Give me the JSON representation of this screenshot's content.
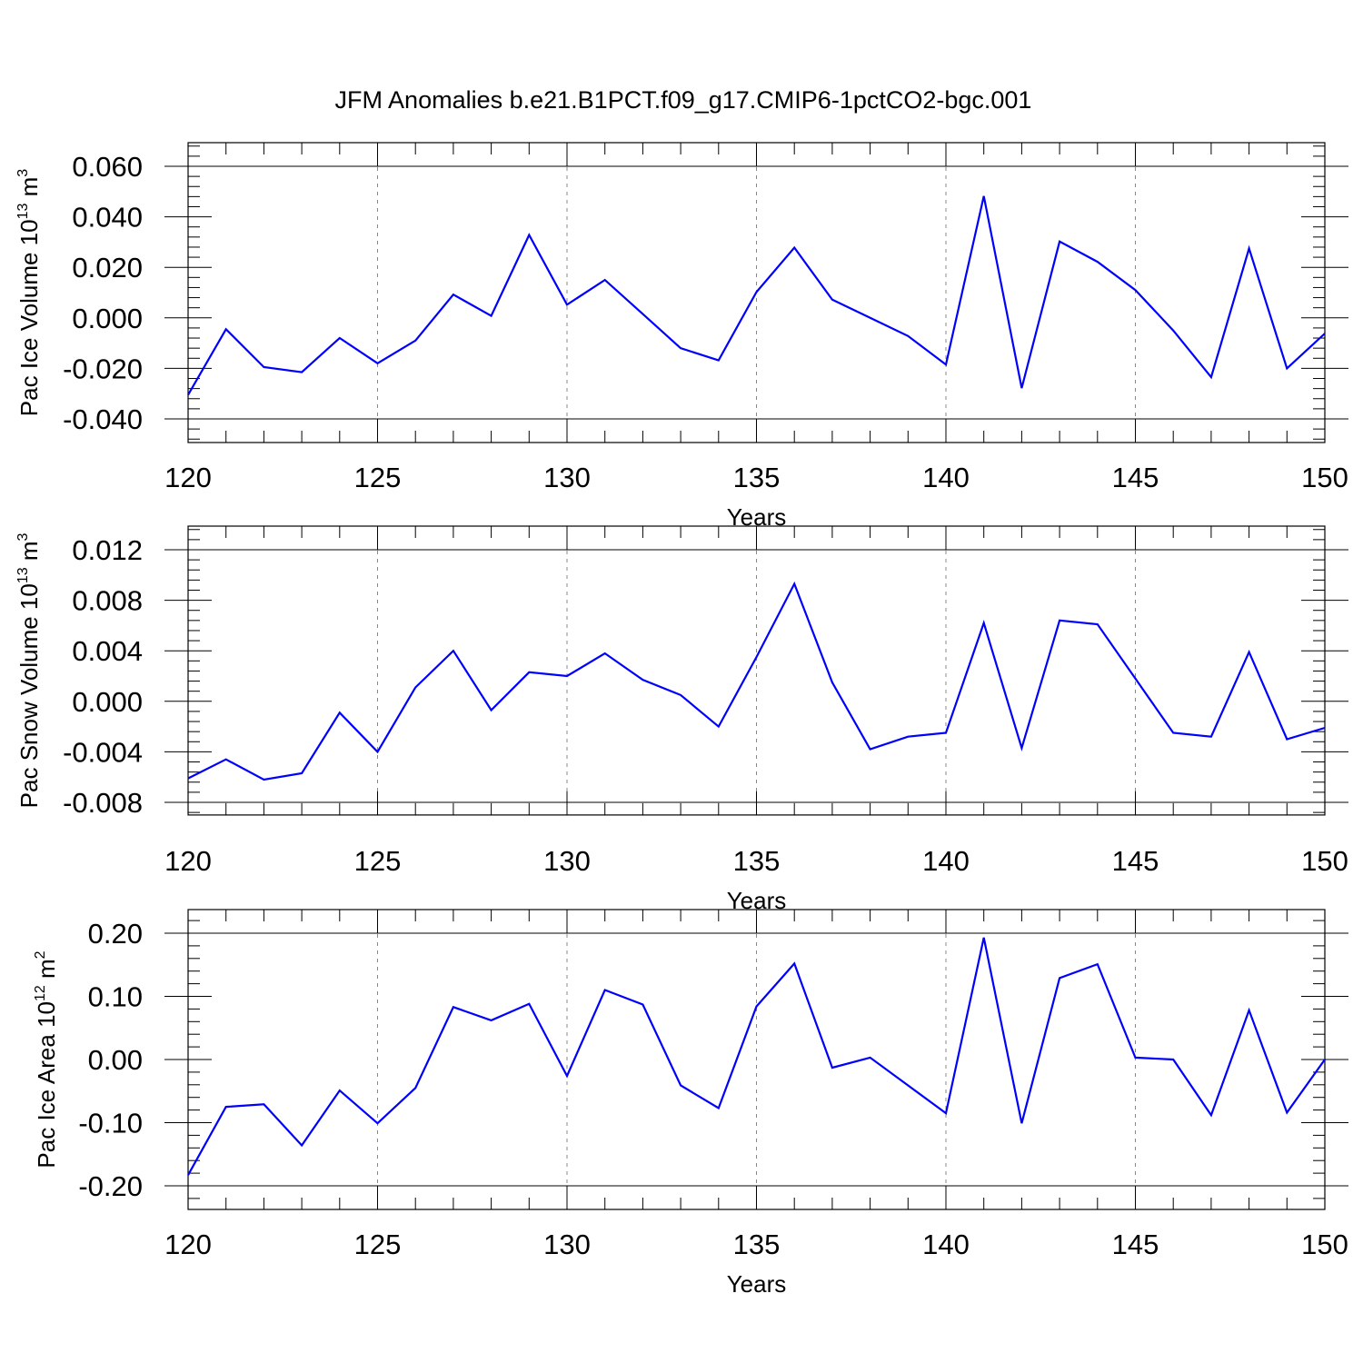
{
  "title": "JFM Anomalies b.e21.B1PCT.f09_g17.CMIP6-1pctCO2-bgc.001",
  "colors": {
    "line": "#0000ff",
    "axis": "#000000",
    "grid": "#888888"
  },
  "chart_data": [
    {
      "type": "line",
      "ylabel": {
        "main": "Pac Ice Volume 10",
        "sup": "13",
        "unit": " m",
        "unit_sup": "3"
      },
      "xlabel": "Years",
      "xlim": [
        120,
        150
      ],
      "ylim": [
        -0.04,
        0.06
      ],
      "yticks": [
        -0.04,
        -0.02,
        0.0,
        0.02,
        0.04,
        0.06
      ],
      "ytick_labels": [
        "-0.040",
        "-0.020",
        "0.000",
        "0.020",
        "0.040",
        "0.060"
      ],
      "xticks": [
        120,
        125,
        130,
        135,
        140,
        145,
        150
      ],
      "xtick_labels": [
        "120",
        "125",
        "130",
        "135",
        "140",
        "145",
        "150"
      ],
      "grid": "vertical dashed at major x ticks",
      "x": [
        120,
        121,
        122,
        123,
        124,
        125,
        126,
        127,
        128,
        129,
        130,
        131,
        132,
        133,
        134,
        135,
        136,
        137,
        138,
        139,
        140,
        141,
        142,
        143,
        144,
        145,
        146,
        147,
        148,
        149,
        150
      ],
      "series": [
        {
          "values": [
            -0.0305,
            -0.0045,
            -0.0195,
            -0.0215,
            -0.008,
            -0.018,
            -0.009,
            0.0092,
            0.0008,
            0.0328,
            0.0052,
            0.015,
            0.0015,
            -0.012,
            -0.0168,
            0.0102,
            0.0278,
            0.0072,
            0.0,
            -0.0072,
            -0.0185,
            0.0482,
            -0.0278,
            0.0302,
            0.0222,
            0.011,
            -0.005,
            -0.0235,
            0.0275,
            -0.02,
            -0.0062
          ]
        }
      ]
    },
    {
      "type": "line",
      "ylabel": {
        "main": "Pac Snow Volume 10",
        "sup": "13",
        "unit": " m",
        "unit_sup": "3"
      },
      "xlabel": "Years",
      "xlim": [
        120,
        150
      ],
      "ylim": [
        -0.009,
        0.0125
      ],
      "yticks": [
        -0.008,
        -0.004,
        0.0,
        0.004,
        0.008,
        0.012
      ],
      "ytick_labels": [
        "-0.008",
        "-0.004",
        "0.000",
        "0.004",
        "0.008",
        "0.012"
      ],
      "xticks": [
        120,
        125,
        130,
        135,
        140,
        145,
        150
      ],
      "xtick_labels": [
        "120",
        "125",
        "130",
        "135",
        "140",
        "145",
        "150"
      ],
      "grid": "vertical dashed at major x ticks",
      "x": [
        120,
        121,
        122,
        123,
        124,
        125,
        126,
        127,
        128,
        129,
        130,
        131,
        132,
        133,
        134,
        135,
        136,
        137,
        138,
        139,
        140,
        141,
        142,
        143,
        144,
        145,
        146,
        147,
        148,
        149,
        150
      ],
      "series": [
        {
          "values": [
            -0.0061,
            -0.0046,
            -0.0062,
            -0.0057,
            -0.0009,
            -0.004,
            0.0011,
            0.004,
            -0.0007,
            0.0023,
            0.002,
            0.0038,
            0.0017,
            0.0005,
            -0.002,
            0.0035,
            0.0093,
            0.0015,
            -0.0038,
            -0.0028,
            -0.0025,
            0.0062,
            -0.0037,
            0.0064,
            0.0061,
            0.0018,
            -0.0025,
            -0.0028,
            0.0039,
            -0.003,
            -0.0021
          ]
        }
      ]
    },
    {
      "type": "line",
      "ylabel": {
        "main": "Pac Ice Area 10",
        "sup": "12",
        "unit": " m",
        "unit_sup": "2"
      },
      "xlabel": "Years",
      "xlim": [
        120,
        150
      ],
      "ylim": [
        -0.2,
        0.2
      ],
      "yticks": [
        -0.2,
        -0.1,
        0.0,
        0.1,
        0.2
      ],
      "ytick_labels": [
        "-0.20",
        "-0.10",
        "0.00",
        "0.10",
        "0.20"
      ],
      "xticks": [
        120,
        125,
        130,
        135,
        140,
        145,
        150
      ],
      "xtick_labels": [
        "120",
        "125",
        "130",
        "135",
        "140",
        "145",
        "150"
      ],
      "grid": "vertical dashed at major x ticks",
      "x": [
        120,
        121,
        122,
        123,
        124,
        125,
        126,
        127,
        128,
        129,
        130,
        131,
        132,
        133,
        134,
        135,
        136,
        137,
        138,
        139,
        140,
        141,
        142,
        143,
        144,
        145,
        146,
        147,
        148,
        149,
        150
      ],
      "series": [
        {
          "values": [
            -0.183,
            -0.075,
            -0.071,
            -0.136,
            -0.049,
            -0.101,
            -0.045,
            0.083,
            0.062,
            0.088,
            -0.026,
            0.11,
            0.087,
            -0.041,
            -0.077,
            0.084,
            0.152,
            -0.013,
            0.003,
            -0.041,
            -0.085,
            0.193,
            -0.101,
            0.129,
            0.151,
            0.003,
            0.0,
            -0.088,
            0.078,
            -0.084,
            0.0
          ]
        }
      ]
    }
  ]
}
